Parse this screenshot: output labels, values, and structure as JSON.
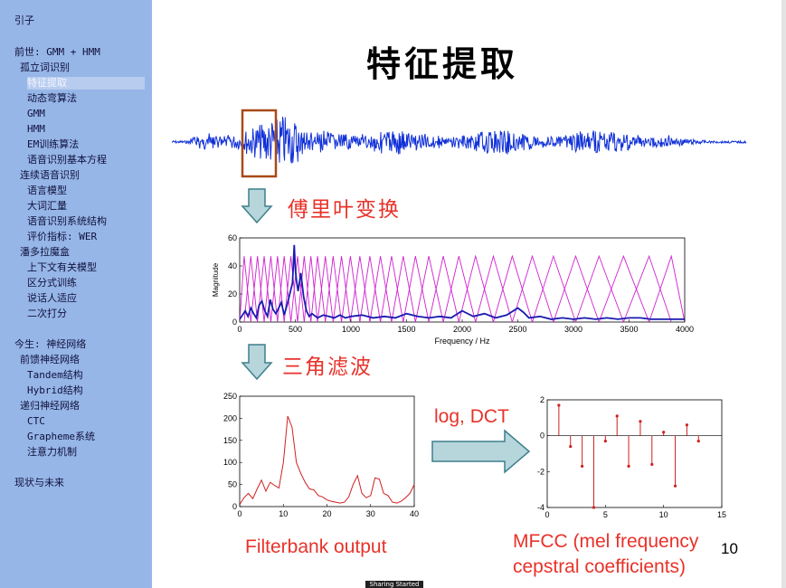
{
  "sidebar": {
    "items": [
      {
        "label": "引子"
      },
      {
        "label": "前世: GMM + HMM"
      },
      {
        "label": "孤立词识别"
      },
      {
        "label": "特征提取",
        "active": true
      },
      {
        "label": "动态弯算法"
      },
      {
        "label": "GMM"
      },
      {
        "label": "HMM"
      },
      {
        "label": "EM训练算法"
      },
      {
        "label": "语音识别基本方程"
      },
      {
        "label": "连续语音识别"
      },
      {
        "label": "语言模型"
      },
      {
        "label": "大词汇量"
      },
      {
        "label": "语音识别系统结构"
      },
      {
        "label": "评价指标: WER"
      },
      {
        "label": "潘多拉魔盒"
      },
      {
        "label": "上下文有关模型"
      },
      {
        "label": "区分式训练"
      },
      {
        "label": "说话人适应"
      },
      {
        "label": "二次打分"
      },
      {
        "label": "今生: 神经网络"
      },
      {
        "label": "前馈神经网络"
      },
      {
        "label": "Tandem结构"
      },
      {
        "label": "Hybrid结构"
      },
      {
        "label": "递归神经网络"
      },
      {
        "label": "CTC"
      },
      {
        "label": "Grapheme系统"
      },
      {
        "label": "注意力机制"
      },
      {
        "label": "现状与未来"
      }
    ]
  },
  "slide": {
    "title": "特征提取",
    "fourier_label": "傅里叶变换",
    "triangle_filter_label": "三角滤波",
    "log_dct_label": "log, DCT",
    "filterbank_caption": "Filterbank output",
    "mfcc_caption_line1": "MFCC (mel frequency",
    "mfcc_caption_line2": "cepstral coefficients)",
    "slide_number": "10"
  },
  "status": {
    "sharing": "Sharing Started"
  },
  "colors": {
    "sidebar_bg": "#96b6e8",
    "accent_red": "#e8322a",
    "waveform_blue": "#1030d8",
    "arrow_fill": "#b6d6dc",
    "filter_magenta": "#d020d0",
    "highlight_box": "#a84a18"
  },
  "chart_data": [
    {
      "type": "line",
      "description_of_series": "spectrum magnitude (blue) with overlaid triangular mel filters (magenta)",
      "xlabel": "Frequency / Hz",
      "ylabel": "Magnitude",
      "xlim": [
        0,
        4000
      ],
      "ylim": [
        0,
        60
      ],
      "xticks": [
        0,
        500,
        1000,
        1500,
        2000,
        2500,
        3000,
        3500,
        4000
      ],
      "yticks": [
        0,
        20,
        40,
        60
      ],
      "filter_centers": [
        40,
        100,
        160,
        220,
        280,
        340,
        400,
        460,
        520,
        580,
        640,
        700,
        770,
        840,
        915,
        995,
        1080,
        1170,
        1265,
        1365,
        1470,
        1580,
        1700,
        1830,
        1970,
        2120,
        2280,
        2450,
        2630,
        2820,
        3020,
        3230,
        3450,
        3680,
        3880
      ],
      "filter_peak": 47,
      "series": [
        {
          "x": [
            0,
            25,
            50,
            75,
            100,
            125,
            150,
            175,
            200,
            225,
            250,
            275,
            300,
            325,
            350,
            375,
            400,
            425,
            450,
            475,
            490,
            500,
            510,
            525,
            550,
            575,
            600,
            625,
            650,
            700,
            750,
            800,
            850,
            900,
            950,
            1000,
            1100,
            1200,
            1300,
            1400,
            1500,
            1600,
            1700,
            1800,
            1900,
            2000,
            2100,
            2200,
            2300,
            2400,
            2500,
            2550,
            2600,
            2700,
            2800,
            2900,
            3000,
            3100,
            3200,
            3300,
            3400,
            3500,
            3600,
            3700,
            3800,
            3900,
            4000
          ],
          "values": [
            2,
            5,
            8,
            4,
            10,
            6,
            3,
            12,
            15,
            8,
            4,
            16,
            9,
            6,
            10,
            14,
            5,
            12,
            20,
            28,
            55,
            38,
            30,
            22,
            35,
            18,
            8,
            4,
            6,
            3,
            5,
            4,
            3,
            5,
            3,
            4,
            5,
            3,
            4,
            3,
            6,
            4,
            3,
            4,
            3,
            8,
            4,
            6,
            3,
            5,
            10,
            7,
            3,
            4,
            2,
            3,
            2,
            3,
            2,
            3,
            2,
            3,
            3,
            2,
            2,
            2,
            2
          ]
        }
      ]
    },
    {
      "type": "line",
      "xlim": [
        0,
        40
      ],
      "ylim": [
        0,
        250
      ],
      "xticks": [
        0,
        10,
        20,
        30,
        40
      ],
      "yticks": [
        0,
        50,
        100,
        150,
        200,
        250
      ],
      "series": [
        {
          "x": [
            0,
            1,
            2,
            3,
            4,
            5,
            6,
            7,
            8,
            9,
            10,
            11,
            12,
            13,
            14,
            15,
            16,
            17,
            18,
            19,
            20,
            21,
            22,
            23,
            24,
            25,
            26,
            27,
            28,
            29,
            30,
            31,
            32,
            33,
            34,
            35,
            36,
            37,
            38,
            39,
            40
          ],
          "values": [
            5,
            20,
            30,
            18,
            40,
            60,
            35,
            55,
            48,
            42,
            100,
            205,
            180,
            100,
            75,
            55,
            40,
            38,
            25,
            22,
            15,
            12,
            10,
            8,
            10,
            22,
            50,
            70,
            30,
            20,
            25,
            65,
            62,
            30,
            25,
            10,
            8,
            12,
            20,
            30,
            50
          ]
        }
      ]
    },
    {
      "type": "scatter",
      "xlim": [
        0,
        15
      ],
      "ylim": [
        -4,
        2
      ],
      "xticks": [
        0,
        5,
        10,
        15
      ],
      "yticks": [
        -4,
        -2,
        0,
        2
      ],
      "series": [
        {
          "x": [
            1,
            2,
            3,
            4,
            5,
            6,
            7,
            8,
            9,
            10,
            11,
            12,
            13
          ],
          "values": [
            1.7,
            -0.6,
            -1.7,
            -4.0,
            -0.3,
            1.1,
            -1.7,
            0.8,
            -1.6,
            0.2,
            -2.8,
            0.6,
            -0.3
          ]
        }
      ]
    }
  ]
}
